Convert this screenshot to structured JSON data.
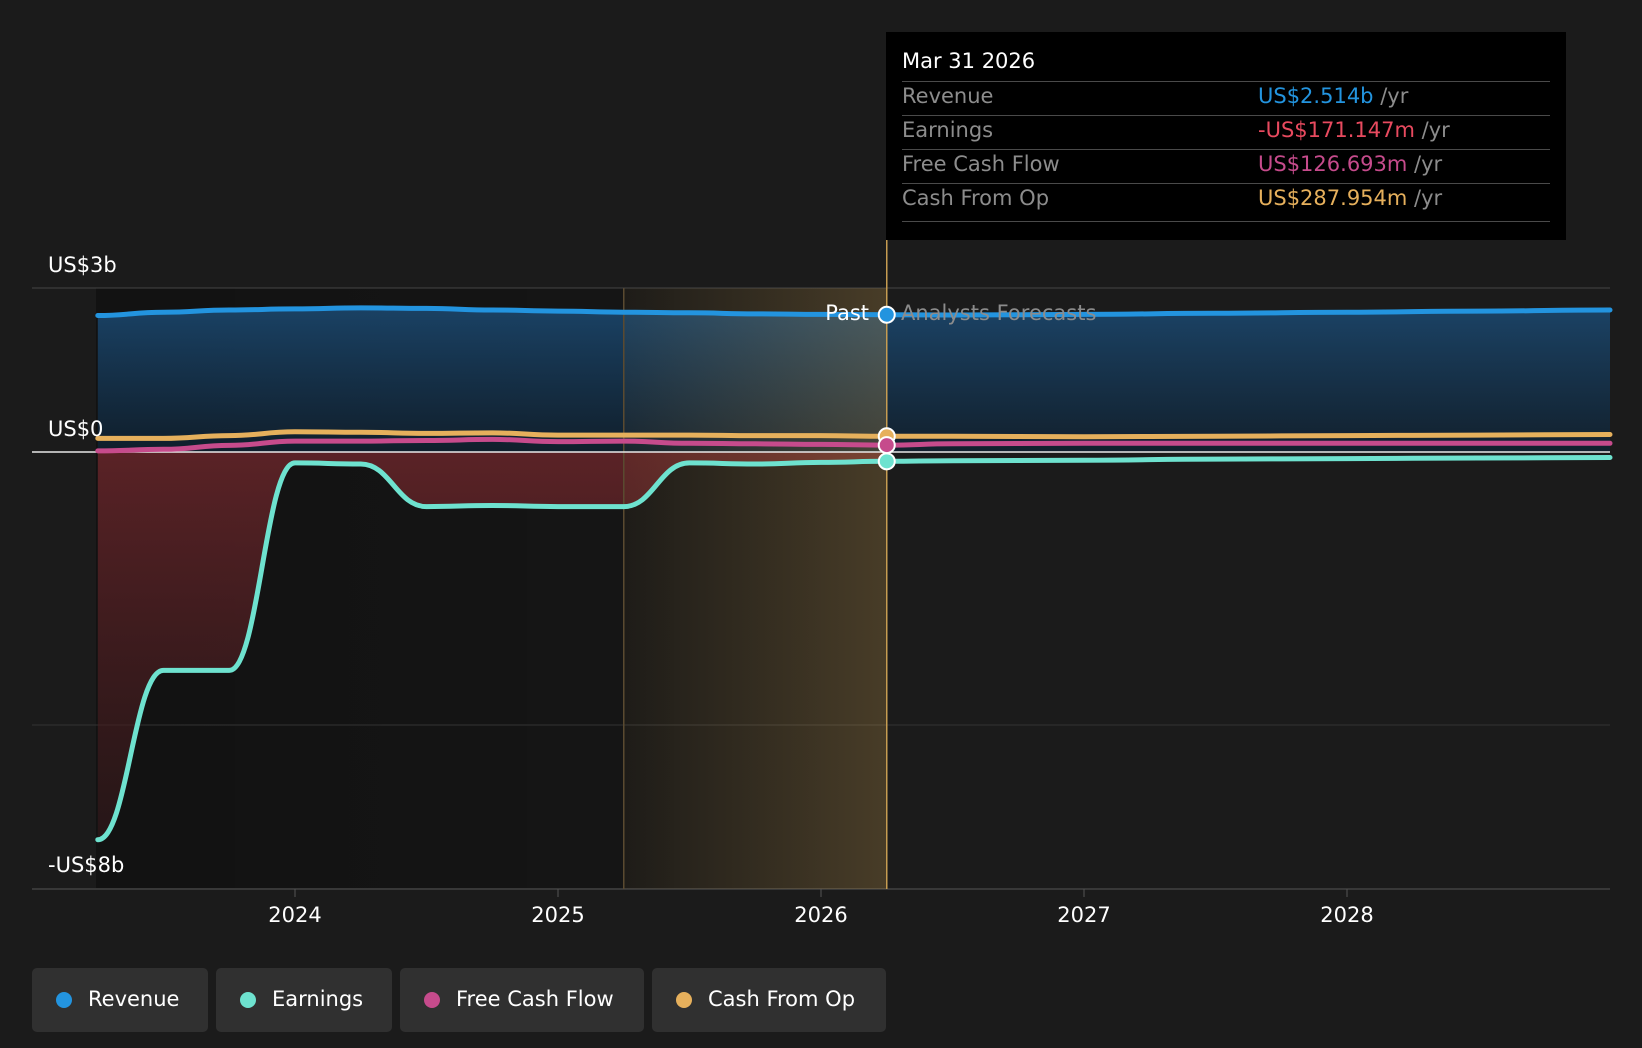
{
  "colors": {
    "background": "#1b1b1b",
    "revenue": "#2394df",
    "earnings": "#6ee2cf",
    "free_cash_flow": "#c64b8c",
    "cash_from_op": "#e6b05c",
    "past_highlight": "#c69c51",
    "negative_fill": "#5a2428",
    "tooltip_bg": "#000000"
  },
  "chart": {
    "y_label_top": "US$3b",
    "y_label_zero": "US$0",
    "y_label_bottom": "-US$8b",
    "x_ticks": [
      "2024",
      "2025",
      "2026",
      "2027",
      "2028"
    ],
    "past_label": "Past",
    "forecast_label": "Analysts Forecasts"
  },
  "tooltip": {
    "date": "Mar 31 2026",
    "unit": "/yr",
    "rows": [
      {
        "label": "Revenue",
        "value": "US$2.514b",
        "color": "#2394df"
      },
      {
        "label": "Earnings",
        "value": "-US$171.147m",
        "color": "#e84a5f"
      },
      {
        "label": "Free Cash Flow",
        "value": "US$126.693m",
        "color": "#c64b8c"
      },
      {
        "label": "Cash From Op",
        "value": "US$287.954m",
        "color": "#e6b05c"
      }
    ]
  },
  "legend": [
    {
      "label": "Revenue",
      "color": "#2394df"
    },
    {
      "label": "Earnings",
      "color": "#6ee2cf"
    },
    {
      "label": "Free Cash Flow",
      "color": "#c64b8c"
    },
    {
      "label": "Cash From Op",
      "color": "#e6b05c"
    }
  ],
  "chart_data": {
    "type": "line",
    "title": "",
    "xlabel": "",
    "ylabel": "",
    "y_unit": "US$ billions",
    "ylim": [
      -8,
      3
    ],
    "x_ticks": [
      2024,
      2025,
      2026,
      2027,
      2028
    ],
    "grid": "horizontal",
    "legend_position": "bottom",
    "past_end": 2026.25,
    "highlight_start": 2025.25,
    "series": [
      {
        "name": "Revenue",
        "values": [
          [
            2023.25,
            2.5
          ],
          [
            2023.5,
            2.56
          ],
          [
            2023.75,
            2.6
          ],
          [
            2024.0,
            2.62
          ],
          [
            2024.25,
            2.64
          ],
          [
            2024.5,
            2.63
          ],
          [
            2024.75,
            2.6
          ],
          [
            2025.0,
            2.58
          ],
          [
            2025.25,
            2.56
          ],
          [
            2025.5,
            2.55
          ],
          [
            2025.75,
            2.53
          ],
          [
            2026.0,
            2.52
          ],
          [
            2026.25,
            2.514
          ],
          [
            2026.5,
            2.51
          ],
          [
            2027.0,
            2.52
          ],
          [
            2027.5,
            2.54
          ],
          [
            2028.0,
            2.56
          ],
          [
            2028.5,
            2.58
          ],
          [
            2029.0,
            2.6
          ]
        ]
      },
      {
        "name": "Earnings",
        "values": [
          [
            2023.25,
            -7.1
          ],
          [
            2023.5,
            -4.0
          ],
          [
            2023.75,
            -4.0
          ],
          [
            2024.0,
            -0.2
          ],
          [
            2024.25,
            -0.22
          ],
          [
            2024.5,
            -1.0
          ],
          [
            2024.75,
            -0.98
          ],
          [
            2025.0,
            -1.0
          ],
          [
            2025.25,
            -1.0
          ],
          [
            2025.5,
            -0.2
          ],
          [
            2025.75,
            -0.22
          ],
          [
            2026.0,
            -0.19
          ],
          [
            2026.25,
            -0.171
          ],
          [
            2026.5,
            -0.16
          ],
          [
            2027.0,
            -0.15
          ],
          [
            2027.5,
            -0.13
          ],
          [
            2028.0,
            -0.12
          ],
          [
            2028.5,
            -0.11
          ],
          [
            2029.0,
            -0.1
          ]
        ]
      },
      {
        "name": "Free Cash Flow",
        "values": [
          [
            2023.25,
            0.02
          ],
          [
            2023.5,
            0.05
          ],
          [
            2023.75,
            0.12
          ],
          [
            2024.0,
            0.2
          ],
          [
            2024.25,
            0.2
          ],
          [
            2024.5,
            0.21
          ],
          [
            2024.75,
            0.23
          ],
          [
            2025.0,
            0.19
          ],
          [
            2025.25,
            0.2
          ],
          [
            2025.5,
            0.16
          ],
          [
            2025.75,
            0.15
          ],
          [
            2026.0,
            0.14
          ],
          [
            2026.25,
            0.127
          ],
          [
            2026.5,
            0.15
          ],
          [
            2027.0,
            0.16
          ],
          [
            2027.5,
            0.16
          ],
          [
            2028.0,
            0.16
          ],
          [
            2028.5,
            0.16
          ],
          [
            2029.0,
            0.16
          ]
        ]
      },
      {
        "name": "Cash From Op",
        "values": [
          [
            2023.25,
            0.25
          ],
          [
            2023.5,
            0.25
          ],
          [
            2023.75,
            0.3
          ],
          [
            2024.0,
            0.37
          ],
          [
            2024.25,
            0.36
          ],
          [
            2024.5,
            0.34
          ],
          [
            2024.75,
            0.35
          ],
          [
            2025.0,
            0.31
          ],
          [
            2025.25,
            0.31
          ],
          [
            2025.5,
            0.31
          ],
          [
            2025.75,
            0.3
          ],
          [
            2026.0,
            0.3
          ],
          [
            2026.25,
            0.288
          ],
          [
            2026.5,
            0.29
          ],
          [
            2027.0,
            0.28
          ],
          [
            2027.5,
            0.29
          ],
          [
            2028.0,
            0.3
          ],
          [
            2028.5,
            0.31
          ],
          [
            2029.0,
            0.32
          ]
        ]
      }
    ]
  }
}
